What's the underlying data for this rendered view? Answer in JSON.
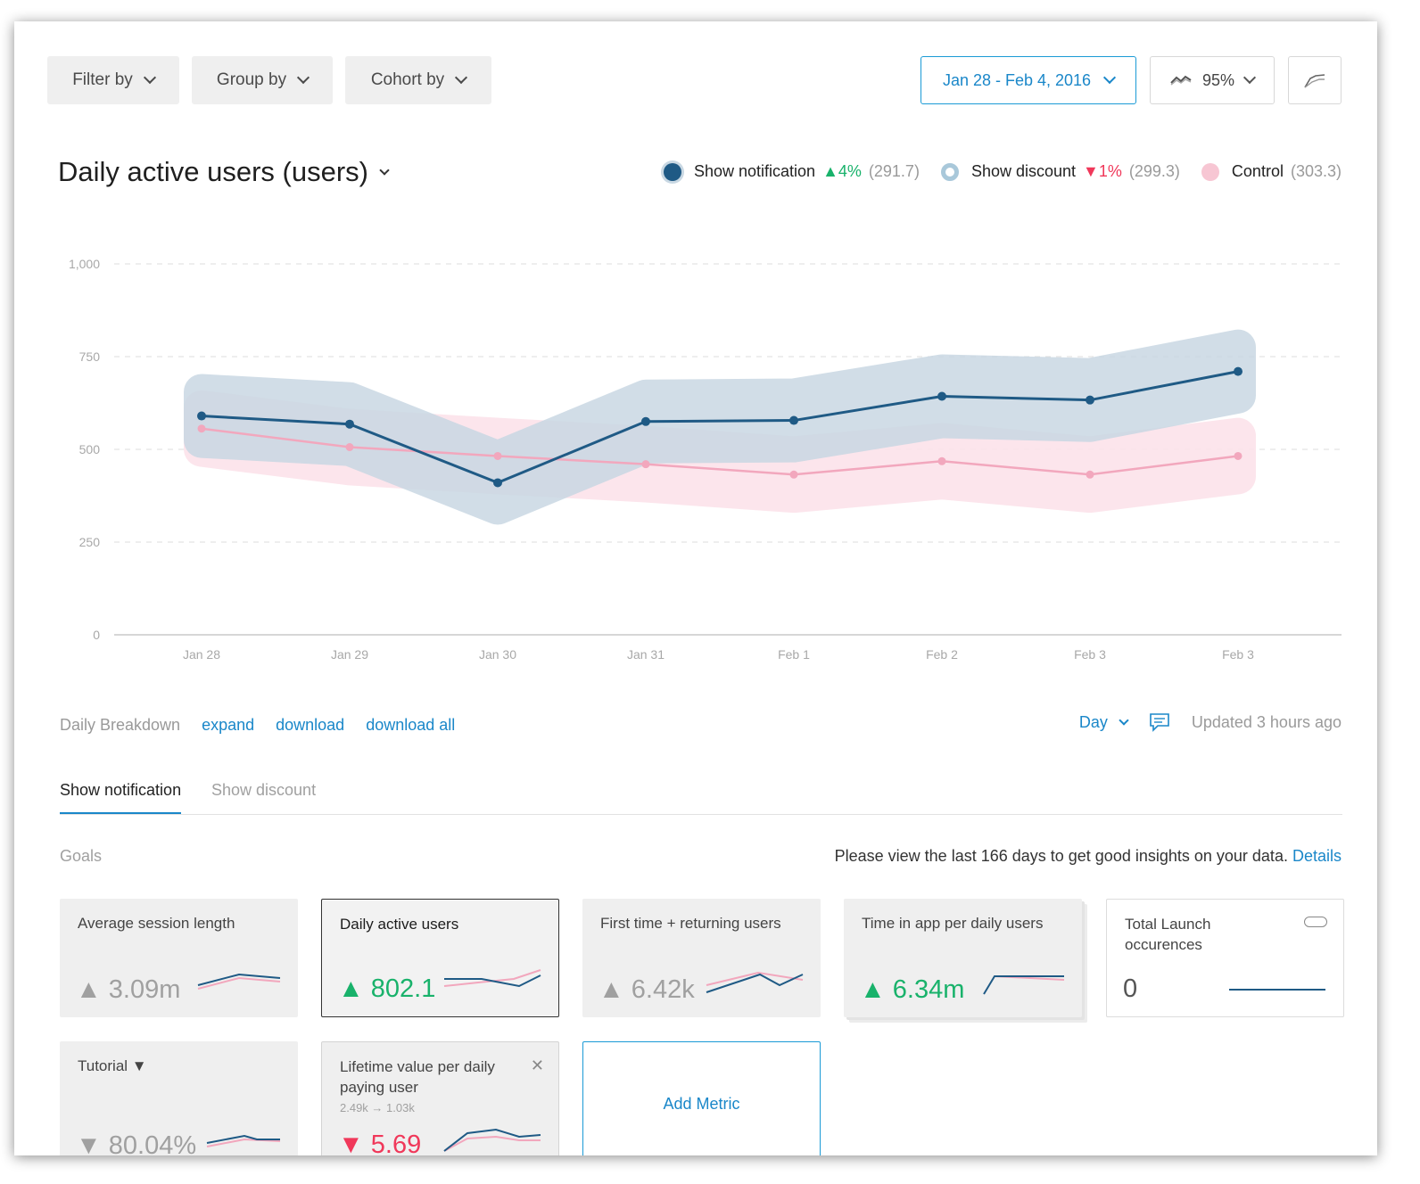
{
  "toolbar": {
    "filter_label": "Filter by",
    "group_label": "Group by",
    "cohort_label": "Cohort by",
    "date_range": "Jan 28 - Feb 4, 2016",
    "confidence": "95%"
  },
  "title": "Daily active users (users)",
  "legend": [
    {
      "name": "Show notification",
      "change": "▲4%",
      "direction": "up",
      "value": "(291.7)",
      "color": "#1f5a85",
      "style": "filled"
    },
    {
      "name": "Show discount",
      "change": "▼1%",
      "direction": "down",
      "value": "(299.3)",
      "color": "#8fb8d0",
      "style": "ring"
    },
    {
      "name": "Control",
      "change": "",
      "direction": "none",
      "value": "(303.3)",
      "color": "#f7c6d3",
      "style": "filled"
    }
  ],
  "chart_data": {
    "type": "line",
    "categories": [
      "Jan 28",
      "Jan 29",
      "Jan 30",
      "Jan 31",
      "Feb 1",
      "Feb 2",
      "Feb 3",
      "Feb 3"
    ],
    "y_ticks": [
      "0",
      "250",
      "500",
      "750",
      "1,000"
    ],
    "ylim": [
      0,
      1000
    ],
    "grid": true,
    "series": [
      {
        "name": "Show notification",
        "color": "#1f5a85",
        "band_color": "#c9d8e3",
        "values": [
          590,
          568,
          410,
          575,
          578,
          643,
          633,
          710
        ],
        "band_half_width": [
          65,
          65,
          65,
          65,
          65,
          65,
          65,
          65
        ]
      },
      {
        "name": "Control",
        "color": "#f2a7bd",
        "band_color": "#fce3ea",
        "values": [
          556,
          506,
          482,
          460,
          432,
          468,
          432,
          482
        ],
        "band_half_width": [
          55,
          55,
          55,
          55,
          55,
          55,
          55,
          55
        ]
      }
    ]
  },
  "breakdown": {
    "label": "Daily Breakdown",
    "expand": "expand",
    "download": "download",
    "download_all": "download all",
    "interval": "Day",
    "updated": "Updated 3 hours ago"
  },
  "tabs": [
    "Show notification",
    "Show discount"
  ],
  "goals_label": "Goals",
  "notice": {
    "text": "Please view the last 166 days to get good insights on your data.",
    "link": "Details"
  },
  "metrics": [
    {
      "title": "Average session length",
      "value": "▲ 3.09m",
      "tone": "muted"
    },
    {
      "title": "Daily active users",
      "value": "▲ 802.1",
      "tone": "up"
    },
    {
      "title": "First time + returning users",
      "value": "▲ 6.42k",
      "tone": "muted"
    },
    {
      "title": "Time in app per daily users",
      "value": "▲ 6.34m",
      "tone": "up"
    },
    {
      "title": "Total Launch occurences",
      "value": "0",
      "tone": "plain"
    },
    {
      "title": "Tutorial ▼",
      "value": "▼ 80.04%",
      "tone": "muted"
    },
    {
      "title": "Lifetime value per daily paying user",
      "sub": "2.49k → 1.03k",
      "value": "▼ 5.69",
      "tone": "down"
    }
  ],
  "add_metric": "Add Metric"
}
